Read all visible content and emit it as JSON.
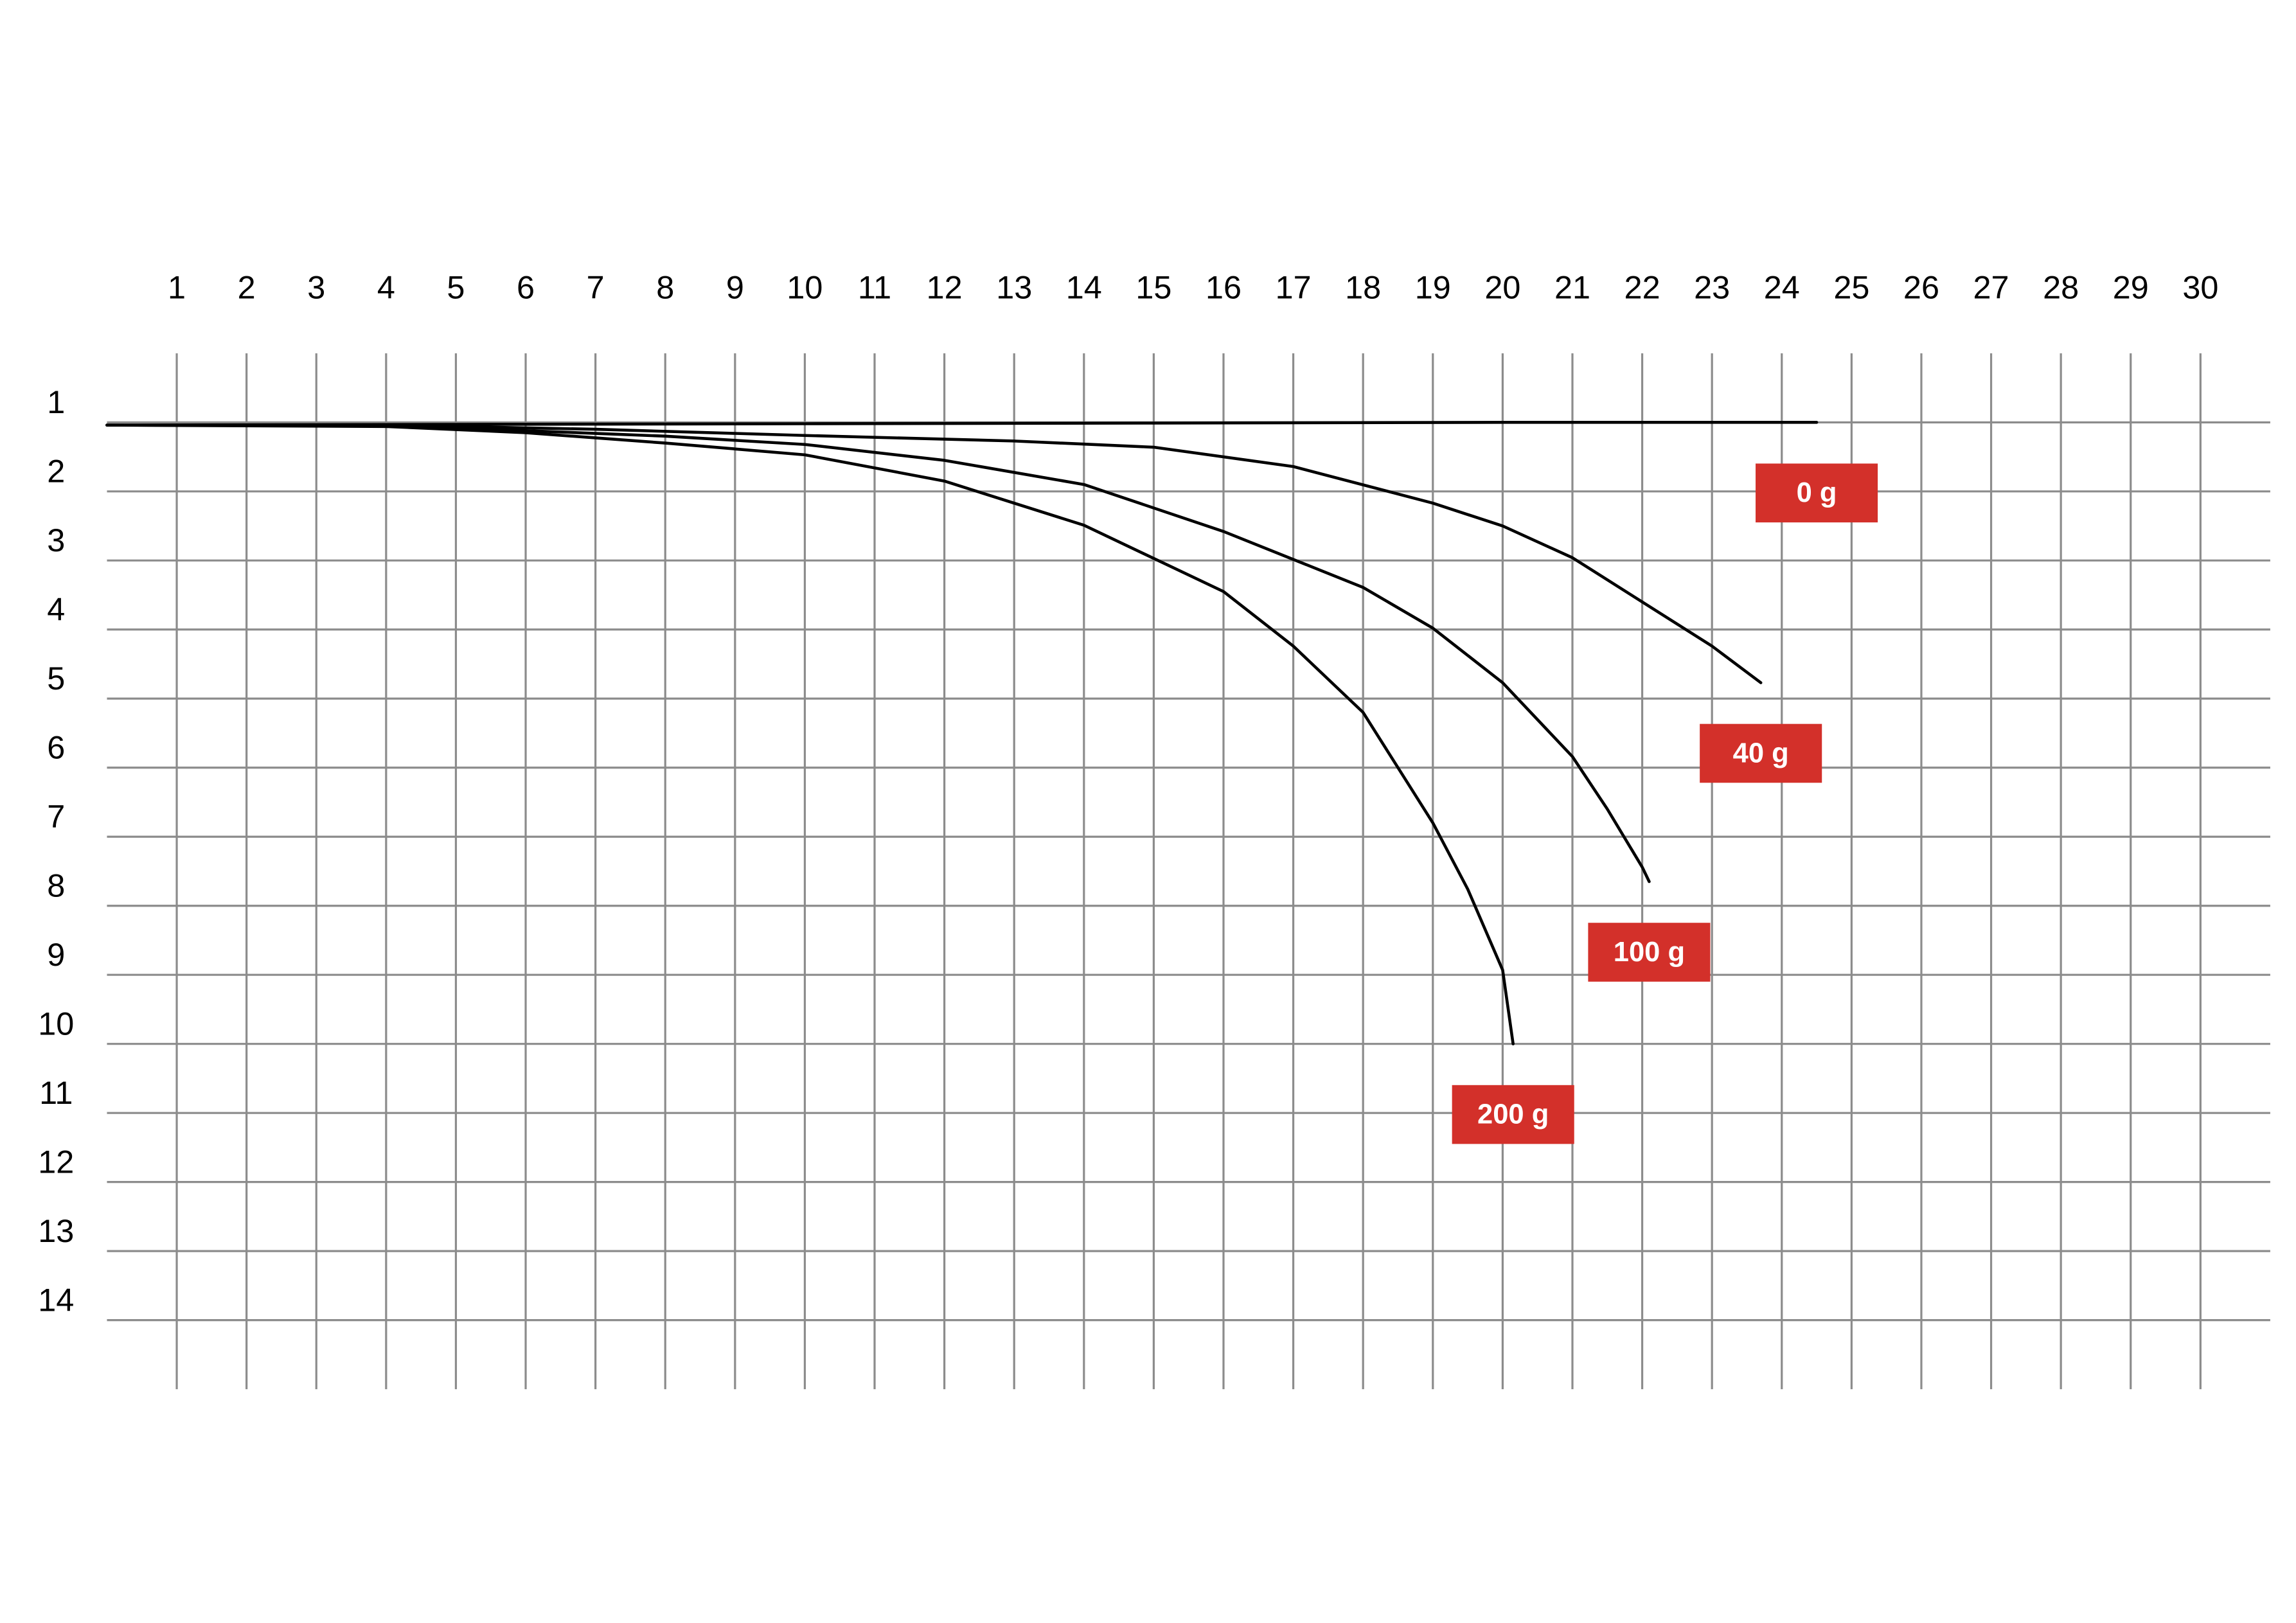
{
  "chart_data": {
    "type": "line",
    "xlim": [
      0,
      31
    ],
    "ylim": [
      15,
      0
    ],
    "xticks": [
      1,
      2,
      3,
      4,
      5,
      6,
      7,
      8,
      9,
      10,
      11,
      12,
      13,
      14,
      15,
      16,
      17,
      18,
      19,
      20,
      21,
      22,
      23,
      24,
      25,
      26,
      27,
      28,
      29,
      30
    ],
    "yticks": [
      1,
      2,
      3,
      4,
      5,
      6,
      7,
      8,
      9,
      10,
      11,
      12,
      13,
      14
    ],
    "grid": true,
    "series": [
      {
        "name": "0 g",
        "color": "#000000",
        "x": [
          0,
          5,
          10,
          15,
          20,
          24.5
        ],
        "values": [
          1.04,
          1.03,
          1.02,
          1.01,
          1.0,
          1.0
        ]
      },
      {
        "name": "40 g",
        "color": "#000000",
        "x": [
          0,
          4,
          7,
          10,
          13,
          15,
          17,
          19,
          20,
          21,
          22,
          23,
          23.7
        ],
        "values": [
          1.04,
          1.04,
          1.1,
          1.19,
          1.27,
          1.36,
          1.64,
          2.17,
          2.5,
          2.96,
          3.6,
          4.24,
          4.77
        ]
      },
      {
        "name": "100 g",
        "color": "#000000",
        "x": [
          0,
          4,
          6,
          8,
          10,
          12,
          14,
          16,
          18,
          19,
          20,
          21,
          21.5,
          22,
          22.1
        ],
        "values": [
          1.04,
          1.05,
          1.12,
          1.2,
          1.32,
          1.55,
          1.9,
          2.58,
          3.39,
          3.98,
          4.77,
          5.84,
          6.6,
          7.44,
          7.65
        ]
      },
      {
        "name": "200 g",
        "color": "#000000",
        "x": [
          0,
          4,
          6,
          8,
          10,
          12,
          14,
          16,
          17,
          18,
          19,
          19.5,
          20,
          20.15
        ],
        "values": [
          1.04,
          1.06,
          1.15,
          1.3,
          1.47,
          1.85,
          2.49,
          3.45,
          4.24,
          5.2,
          6.8,
          7.76,
          8.93,
          10.0
        ]
      }
    ]
  }
}
